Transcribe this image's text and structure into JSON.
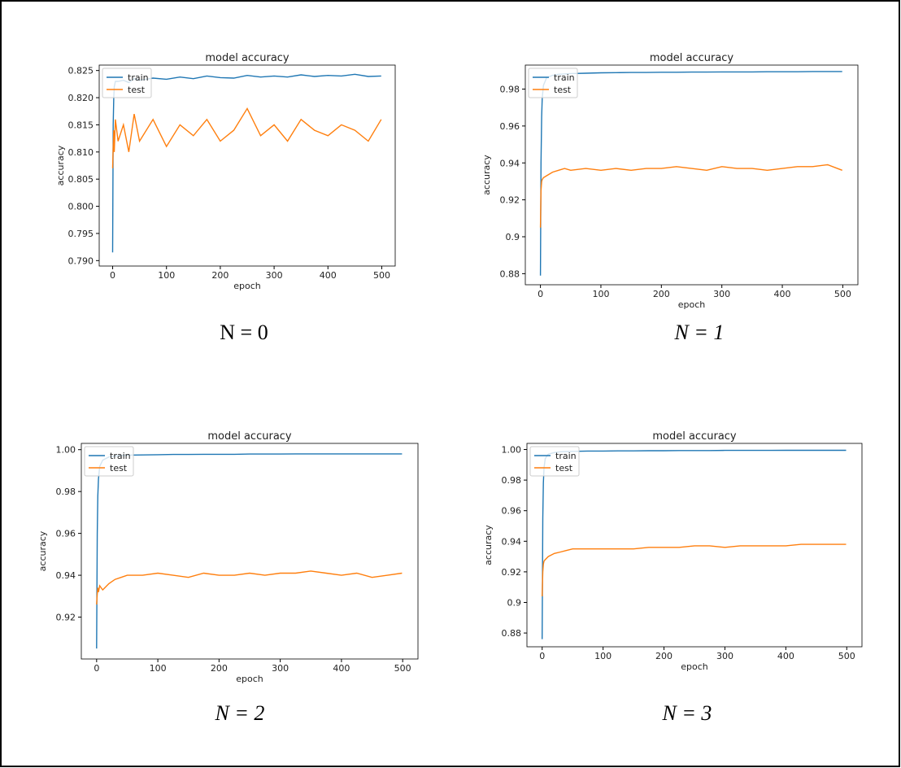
{
  "chart_data": [
    {
      "type": "line",
      "title": "model accuracy",
      "xlabel": "epoch",
      "ylabel": "accuracy",
      "caption": "N = 0",
      "legend": "upper left",
      "x": [
        0,
        1,
        2,
        3,
        5,
        10,
        20,
        30,
        40,
        50,
        75,
        100,
        125,
        150,
        175,
        200,
        225,
        250,
        275,
        300,
        325,
        350,
        375,
        400,
        425,
        450,
        475,
        499
      ],
      "xlim": [
        -25,
        525
      ],
      "xticks": [
        0,
        100,
        200,
        300,
        400,
        500
      ],
      "ylim": [
        0.789,
        0.826
      ],
      "yticks": [
        {
          "value": 0.79,
          "label": "0.790"
        },
        0.795,
        {
          "value": 0.8,
          "label": "0.800"
        },
        0.805,
        {
          "value": 0.81,
          "label": "0.810"
        },
        0.815,
        {
          "value": 0.82,
          "label": "0.820"
        },
        0.825
      ],
      "series": [
        {
          "name": "train",
          "color": "#1f77b4",
          "values": [
            0.7915,
            0.815,
            0.82,
            0.822,
            0.823,
            0.823,
            0.8232,
            0.8228,
            0.8235,
            0.8232,
            0.8236,
            0.8234,
            0.8238,
            0.8235,
            0.824,
            0.8237,
            0.8236,
            0.8241,
            0.8238,
            0.824,
            0.8238,
            0.8242,
            0.8239,
            0.8241,
            0.824,
            0.8243,
            0.8239,
            0.824
          ]
        },
        {
          "name": "test",
          "color": "#ff7f0e",
          "values": [
            0.807,
            0.811,
            0.814,
            0.81,
            0.816,
            0.812,
            0.815,
            0.81,
            0.817,
            0.812,
            0.816,
            0.811,
            0.815,
            0.813,
            0.816,
            0.812,
            0.814,
            0.818,
            0.813,
            0.815,
            0.812,
            0.816,
            0.814,
            0.813,
            0.815,
            0.814,
            0.812,
            0.816
          ]
        }
      ]
    },
    {
      "type": "line",
      "title": "model accuracy",
      "xlabel": "epoch",
      "ylabel": "accuracy",
      "caption": "N = 1",
      "legend": "upper left",
      "x": [
        0,
        1,
        2,
        3,
        5,
        10,
        20,
        30,
        40,
        50,
        75,
        100,
        125,
        150,
        175,
        200,
        225,
        250,
        275,
        300,
        325,
        350,
        375,
        400,
        425,
        450,
        475,
        499
      ],
      "xlim": [
        -25,
        525
      ],
      "xticks": [
        0,
        100,
        200,
        300,
        400,
        500
      ],
      "ylim": [
        0.874,
        0.993
      ],
      "yticks": [
        0.88,
        0.9,
        0.92,
        0.94,
        0.96,
        0.98
      ],
      "series": [
        {
          "name": "train",
          "color": "#1f77b4",
          "values": [
            0.879,
            0.94,
            0.965,
            0.975,
            0.982,
            0.986,
            0.9875,
            0.988,
            0.9882,
            0.9884,
            0.9886,
            0.9888,
            0.9889,
            0.989,
            0.989,
            0.9891,
            0.9891,
            0.9892,
            0.9892,
            0.9893,
            0.9893,
            0.9893,
            0.9894,
            0.9894,
            0.9894,
            0.9895,
            0.9895,
            0.9895
          ]
        },
        {
          "name": "test",
          "color": "#ff7f0e",
          "values": [
            0.905,
            0.925,
            0.93,
            0.931,
            0.932,
            0.933,
            0.935,
            0.936,
            0.937,
            0.936,
            0.937,
            0.936,
            0.937,
            0.936,
            0.937,
            0.937,
            0.938,
            0.937,
            0.936,
            0.938,
            0.937,
            0.937,
            0.936,
            0.937,
            0.938,
            0.938,
            0.939,
            0.936
          ]
        }
      ]
    },
    {
      "type": "line",
      "title": "model accuracy",
      "xlabel": "epoch",
      "ylabel": "accuracy",
      "caption": "N = 2",
      "legend": "upper left",
      "x": [
        0,
        1,
        2,
        3,
        5,
        10,
        20,
        30,
        40,
        50,
        75,
        100,
        125,
        150,
        175,
        200,
        225,
        250,
        275,
        300,
        325,
        350,
        375,
        400,
        425,
        450,
        475,
        499
      ],
      "xlim": [
        -25,
        525
      ],
      "xticks": [
        0,
        100,
        200,
        300,
        400,
        500
      ],
      "ylim": [
        0.9,
        1.003
      ],
      "yticks": [
        0.92,
        0.94,
        0.96,
        0.98,
        {
          "value": 1.0,
          "label": "1.00"
        }
      ],
      "series": [
        {
          "name": "train",
          "color": "#1f77b4",
          "values": [
            0.905,
            0.96,
            0.978,
            0.986,
            0.992,
            0.995,
            0.9965,
            0.997,
            0.9972,
            0.9974,
            0.9975,
            0.9976,
            0.9977,
            0.9977,
            0.9978,
            0.9978,
            0.9978,
            0.9979,
            0.9979,
            0.9979,
            0.998,
            0.998,
            0.998,
            0.998,
            0.998,
            0.998,
            0.998,
            0.998
          ]
        },
        {
          "name": "test",
          "color": "#ff7f0e",
          "values": [
            0.926,
            0.931,
            0.934,
            0.932,
            0.935,
            0.933,
            0.936,
            0.938,
            0.939,
            0.94,
            0.94,
            0.941,
            0.94,
            0.939,
            0.941,
            0.94,
            0.94,
            0.941,
            0.94,
            0.941,
            0.941,
            0.942,
            0.941,
            0.94,
            0.941,
            0.939,
            0.94,
            0.941
          ]
        }
      ]
    },
    {
      "type": "line",
      "title": "model accuracy",
      "xlabel": "epoch",
      "ylabel": "accuracy",
      "caption": "N = 3",
      "legend": "upper left",
      "x": [
        0,
        1,
        2,
        3,
        5,
        10,
        20,
        30,
        40,
        50,
        75,
        100,
        125,
        150,
        175,
        200,
        225,
        250,
        275,
        300,
        325,
        350,
        375,
        400,
        425,
        450,
        475,
        499
      ],
      "xlim": [
        -25,
        525
      ],
      "xticks": [
        0,
        100,
        200,
        300,
        400,
        500
      ],
      "ylim": [
        0.871,
        1.004
      ],
      "yticks": [
        0.88,
        0.9,
        0.92,
        0.94,
        0.96,
        0.98,
        {
          "value": 1.0,
          "label": "1.00"
        }
      ],
      "series": [
        {
          "name": "train",
          "color": "#1f77b4",
          "values": [
            0.876,
            0.955,
            0.978,
            0.988,
            0.994,
            0.997,
            0.998,
            0.9985,
            0.9987,
            0.9988,
            0.999,
            0.999,
            0.9991,
            0.9991,
            0.9992,
            0.9992,
            0.9993,
            0.9993,
            0.9993,
            0.9994,
            0.9994,
            0.9994,
            0.9994,
            0.9995,
            0.9995,
            0.9995,
            0.9995,
            0.9995
          ]
        },
        {
          "name": "test",
          "color": "#ff7f0e",
          "values": [
            0.904,
            0.92,
            0.925,
            0.927,
            0.928,
            0.93,
            0.932,
            0.933,
            0.934,
            0.935,
            0.935,
            0.935,
            0.935,
            0.935,
            0.936,
            0.936,
            0.936,
            0.937,
            0.937,
            0.936,
            0.937,
            0.937,
            0.937,
            0.937,
            0.938,
            0.938,
            0.938,
            0.938
          ]
        }
      ]
    }
  ]
}
